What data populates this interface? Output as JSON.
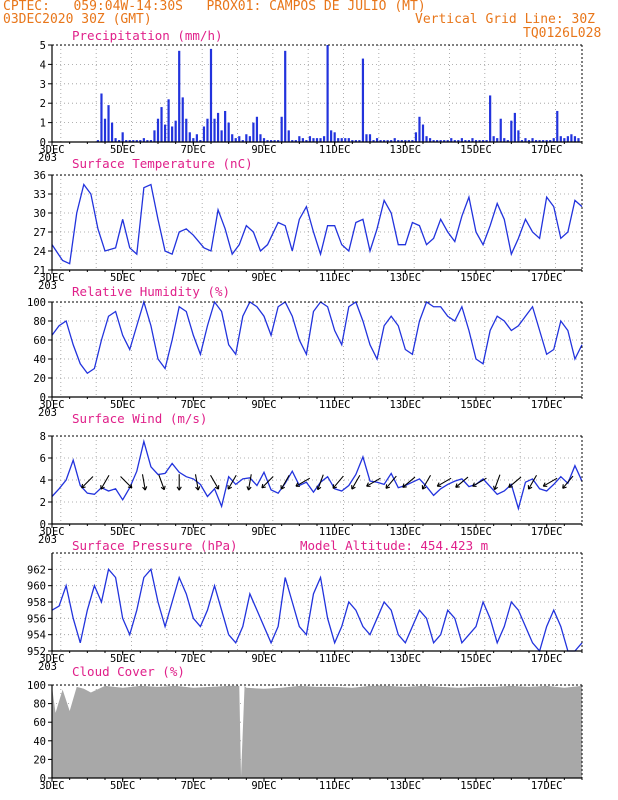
{
  "header": {
    "line1": "CPTEC:   059:04W-14:30S   PROX01: CAMPOS DE JULIO (MT)",
    "line2_left": "03DEC2020 30Z (GMT)",
    "line2_right": "Vertical Grid Line: 30Z",
    "line3_right": "TQ0126L028"
  },
  "colors": {
    "header": "#e8761a",
    "title": "#e0208a",
    "line": "#2233dd",
    "cloud": "#a8a8a8",
    "wind_arrow": "#000000"
  },
  "x_ticks": [
    "3DEC",
    "5DEC",
    "7DEC",
    "9DEC",
    "11DEC",
    "13DEC",
    "15DEC",
    "17DEC"
  ],
  "x_stub": "203",
  "vertical_grid_line": "30Z",
  "chart_data": [
    {
      "type": "bar",
      "title": "Precipitation (mm/h)",
      "ylim": [
        0,
        5
      ],
      "yticks": [
        0,
        1,
        2,
        3,
        4,
        5
      ],
      "x_range_days": [
        3,
        18
      ],
      "series": [
        {
          "x": [
            4.3,
            4.4,
            4.5,
            4.6,
            4.7,
            4.8,
            4.9,
            5.0,
            5.1,
            5.2,
            5.3,
            5.4,
            5.5,
            5.6,
            5.7,
            5.8,
            5.9,
            6.0,
            6.1,
            6.2,
            6.3,
            6.4,
            6.5,
            6.6,
            6.7,
            6.8,
            6.9,
            7.0,
            7.1,
            7.2,
            7.3,
            7.4,
            7.5,
            7.6,
            7.7,
            7.8,
            7.9,
            8.0,
            8.1,
            8.2,
            8.3,
            8.4,
            8.5,
            8.6,
            8.7,
            8.8,
            8.9,
            9.0,
            9.1,
            9.2,
            9.3,
            9.4,
            9.5,
            9.6,
            9.7,
            9.8,
            9.9,
            10.0,
            10.1,
            10.2,
            10.3,
            10.4,
            10.5,
            10.6,
            10.7,
            10.8,
            10.9,
            11.0,
            11.1,
            11.2,
            11.3,
            11.4,
            11.5,
            11.6,
            11.7,
            11.8,
            11.9,
            12.0,
            12.1,
            12.2,
            12.3,
            12.4,
            12.5,
            12.6,
            12.7,
            12.8,
            12.9,
            13.0,
            13.1,
            13.2,
            13.3,
            13.4,
            13.5,
            13.6,
            13.7,
            13.8,
            13.9,
            14.0,
            14.1,
            14.2,
            14.3,
            14.4,
            14.5,
            14.6,
            14.7,
            14.8,
            14.9,
            15.0,
            15.1,
            15.2,
            15.3,
            15.4,
            15.5,
            15.6,
            15.7,
            15.8,
            15.9,
            16.0,
            16.1,
            16.2,
            16.3,
            16.4,
            16.5,
            16.6,
            16.7,
            16.8,
            16.9,
            17.0,
            17.1,
            17.2,
            17.3,
            17.4,
            17.5,
            17.6,
            17.7,
            17.8,
            17.9
          ],
          "y": [
            0.1,
            2.5,
            1.2,
            1.9,
            1.0,
            0.2,
            0.1,
            0.5,
            0.1,
            0.1,
            0.1,
            0.1,
            0.1,
            0.2,
            0.1,
            0.1,
            0.6,
            1.2,
            1.8,
            0.9,
            2.2,
            0.8,
            1.1,
            4.7,
            2.3,
            1.2,
            0.5,
            0.2,
            0.4,
            0.1,
            0.8,
            1.2,
            4.8,
            1.2,
            1.5,
            0.6,
            1.6,
            1.0,
            0.4,
            0.2,
            0.3,
            0.1,
            0.4,
            0.3,
            1.0,
            1.3,
            0.4,
            0.2,
            0.1,
            0.1,
            0.1,
            0.1,
            1.3,
            4.7,
            0.6,
            0.1,
            0.1,
            0.3,
            0.2,
            0.1,
            0.3,
            0.2,
            0.2,
            0.2,
            0.3,
            5.0,
            0.6,
            0.5,
            0.2,
            0.2,
            0.2,
            0.2,
            0.1,
            0.1,
            0.1,
            4.3,
            0.4,
            0.4,
            0.1,
            0.2,
            0.1,
            0.1,
            0.1,
            0.1,
            0.2,
            0.1,
            0.1,
            0.1,
            0.1,
            0.1,
            0.5,
            1.3,
            0.9,
            0.3,
            0.2,
            0.1,
            0.1,
            0.1,
            0.1,
            0.1,
            0.2,
            0.1,
            0.1,
            0.2,
            0.1,
            0.1,
            0.2,
            0.1,
            0.1,
            0.1,
            0.1,
            2.4,
            0.3,
            0.2,
            1.2,
            0.2,
            0.1,
            1.1,
            1.5,
            0.6,
            0.1,
            0.2,
            0.1,
            0.2,
            0.1,
            0.1,
            0.1,
            0.1,
            0.1,
            0.2,
            1.6,
            0.3,
            0.2,
            0.3,
            0.4,
            0.3,
            0.2
          ]
        }
      ]
    },
    {
      "type": "line",
      "title": "Surface Temperature (nC)",
      "ylim": [
        21,
        36
      ],
      "yticks": [
        21,
        24,
        27,
        30,
        33,
        36
      ],
      "series": [
        {
          "x": [
            3.0,
            3.3,
            3.5,
            3.7,
            3.9,
            4.1,
            4.3,
            4.5,
            4.8,
            5.0,
            5.2,
            5.4,
            5.6,
            5.8,
            6.0,
            6.2,
            6.4,
            6.6,
            6.8,
            7.0,
            7.3,
            7.5,
            7.7,
            7.9,
            8.1,
            8.3,
            8.5,
            8.7,
            8.9,
            9.1,
            9.4,
            9.6,
            9.8,
            10.0,
            10.2,
            10.4,
            10.6,
            10.8,
            11.0,
            11.2,
            11.4,
            11.6,
            11.8,
            12.0,
            12.2,
            12.4,
            12.6,
            12.8,
            13.0,
            13.2,
            13.4,
            13.6,
            13.8,
            14.0,
            14.2,
            14.4,
            14.6,
            14.8,
            15.0,
            15.2,
            15.4,
            15.6,
            15.8,
            16.0,
            16.2,
            16.4,
            16.6,
            16.8,
            17.0,
            17.2,
            17.4,
            17.6,
            17.8,
            18.0
          ],
          "y": [
            25.0,
            22.5,
            22.0,
            30.0,
            34.5,
            33.0,
            27.5,
            24.0,
            24.5,
            29.0,
            24.5,
            23.5,
            34.0,
            34.5,
            29.0,
            24.0,
            23.5,
            27.0,
            27.5,
            26.5,
            24.5,
            24.0,
            30.5,
            27.5,
            23.5,
            25.0,
            28.0,
            27.0,
            24.0,
            25.0,
            28.5,
            28.0,
            24.0,
            29.0,
            31.0,
            27.0,
            23.5,
            28.0,
            28.0,
            25.0,
            24.0,
            28.5,
            29.0,
            24.0,
            27.5,
            32.0,
            30.0,
            25.0,
            25.0,
            28.5,
            28.0,
            25.0,
            26.0,
            29.0,
            27.0,
            25.5,
            29.5,
            32.5,
            27.0,
            25.0,
            28.0,
            31.5,
            29.0,
            23.5,
            26.0,
            29.0,
            27.0,
            26.0,
            32.5,
            31.0,
            26.0,
            27.0,
            32.0,
            31.0
          ]
        }
      ]
    },
    {
      "type": "line",
      "title": "Relative Humidity (%)",
      "ylim": [
        0,
        100
      ],
      "yticks": [
        0,
        20,
        40,
        60,
        80,
        100
      ],
      "series": [
        {
          "x": [
            3.0,
            3.2,
            3.4,
            3.6,
            3.8,
            4.0,
            4.2,
            4.4,
            4.6,
            4.8,
            5.0,
            5.2,
            5.4,
            5.6,
            5.8,
            6.0,
            6.2,
            6.4,
            6.6,
            6.8,
            7.0,
            7.2,
            7.4,
            7.6,
            7.8,
            8.0,
            8.2,
            8.4,
            8.6,
            8.8,
            9.0,
            9.2,
            9.4,
            9.6,
            9.8,
            10.0,
            10.2,
            10.4,
            10.6,
            10.8,
            11.0,
            11.2,
            11.4,
            11.6,
            11.8,
            12.0,
            12.2,
            12.4,
            12.6,
            12.8,
            13.0,
            13.2,
            13.4,
            13.6,
            13.8,
            14.0,
            14.2,
            14.4,
            14.6,
            14.8,
            15.0,
            15.2,
            15.4,
            15.6,
            15.8,
            16.0,
            16.2,
            16.4,
            16.6,
            16.8,
            17.0,
            17.2,
            17.4,
            17.6,
            17.8,
            18.0
          ],
          "y": [
            65,
            75,
            80,
            55,
            35,
            25,
            30,
            60,
            85,
            90,
            65,
            50,
            75,
            100,
            75,
            40,
            30,
            60,
            95,
            90,
            65,
            45,
            75,
            100,
            90,
            55,
            45,
            85,
            100,
            95,
            85,
            65,
            95,
            100,
            85,
            60,
            45,
            90,
            100,
            95,
            70,
            55,
            95,
            100,
            80,
            55,
            40,
            75,
            85,
            75,
            50,
            45,
            80,
            100,
            95,
            95,
            85,
            80,
            95,
            70,
            40,
            35,
            70,
            85,
            80,
            70,
            75,
            85,
            95,
            70,
            45,
            50,
            80,
            70,
            40,
            55
          ]
        }
      ]
    },
    {
      "type": "line",
      "title": "Surface Wind (m/s)",
      "ylim": [
        0,
        8
      ],
      "yticks": [
        0,
        2,
        4,
        6,
        8
      ],
      "series": [
        {
          "x": [
            3.0,
            3.2,
            3.4,
            3.6,
            3.8,
            4.0,
            4.2,
            4.4,
            4.6,
            4.8,
            5.0,
            5.2,
            5.4,
            5.6,
            5.8,
            6.0,
            6.2,
            6.4,
            6.6,
            6.8,
            7.0,
            7.2,
            7.4,
            7.6,
            7.8,
            8.0,
            8.2,
            8.4,
            8.6,
            8.8,
            9.0,
            9.2,
            9.4,
            9.6,
            9.8,
            10.0,
            10.2,
            10.4,
            10.6,
            10.8,
            11.0,
            11.2,
            11.4,
            11.6,
            11.8,
            12.0,
            12.2,
            12.4,
            12.6,
            12.8,
            13.0,
            13.2,
            13.4,
            13.6,
            13.8,
            14.0,
            14.2,
            14.4,
            14.6,
            14.8,
            15.0,
            15.2,
            15.4,
            15.6,
            15.8,
            16.0,
            16.2,
            16.4,
            16.6,
            16.8,
            17.0,
            17.2,
            17.4,
            17.6,
            17.8,
            18.0
          ],
          "y": [
            2.5,
            3.2,
            4.0,
            5.8,
            3.5,
            2.8,
            2.7,
            3.3,
            3.0,
            3.2,
            2.2,
            3.3,
            4.8,
            7.5,
            5.2,
            4.5,
            4.6,
            5.5,
            4.7,
            4.3,
            4.1,
            3.6,
            2.5,
            3.2,
            1.6,
            4.3,
            3.6,
            4.1,
            4.2,
            3.5,
            4.7,
            3.1,
            2.8,
            3.7,
            4.8,
            3.5,
            3.8,
            2.9,
            3.8,
            4.3,
            3.2,
            3.0,
            3.5,
            4.5,
            6.1,
            3.9,
            3.8,
            3.6,
            4.6,
            3.3,
            3.5,
            3.8,
            4.1,
            3.4,
            2.6,
            3.2,
            3.6,
            3.9,
            4.1,
            3.4,
            3.6,
            4.1,
            3.4,
            2.7,
            3.0,
            3.6,
            1.4,
            3.8,
            4.1,
            3.2,
            3.0,
            3.6,
            4.3,
            3.7,
            5.3,
            3.9
          ]
        }
      ],
      "arrow_days": [
        4.0,
        4.5,
        5.1,
        5.6,
        6.1,
        6.6,
        7.1,
        7.6,
        8.1,
        8.6,
        9.1,
        9.6,
        10.1,
        10.6,
        11.1,
        11.6,
        12.1,
        12.6,
        13.1,
        13.6,
        14.1,
        14.6,
        15.1,
        15.6,
        16.1,
        16.6,
        17.1,
        17.6
      ],
      "arrow_dirs_deg": [
        135,
        120,
        45,
        80,
        70,
        90,
        80,
        60,
        120,
        100,
        135,
        120,
        150,
        110,
        130,
        120,
        150,
        130,
        140,
        120,
        150,
        140,
        150,
        110,
        140,
        120,
        150,
        130
      ]
    },
    {
      "type": "line",
      "title": "Surface Pressure (hPa)",
      "annotation": "Model Altitude: 454.423 m",
      "ylim": [
        952,
        964
      ],
      "yticks": [
        952,
        954,
        956,
        958,
        960,
        962
      ],
      "series": [
        {
          "x": [
            3.0,
            3.2,
            3.4,
            3.6,
            3.8,
            4.0,
            4.2,
            4.4,
            4.6,
            4.8,
            5.0,
            5.2,
            5.4,
            5.6,
            5.8,
            6.0,
            6.2,
            6.4,
            6.6,
            6.8,
            7.0,
            7.2,
            7.4,
            7.6,
            7.8,
            8.0,
            8.2,
            8.4,
            8.6,
            8.8,
            9.0,
            9.2,
            9.4,
            9.6,
            9.8,
            10.0,
            10.2,
            10.4,
            10.6,
            10.8,
            11.0,
            11.2,
            11.4,
            11.6,
            11.8,
            12.0,
            12.2,
            12.4,
            12.6,
            12.8,
            13.0,
            13.2,
            13.4,
            13.6,
            13.8,
            14.0,
            14.2,
            14.4,
            14.6,
            14.8,
            15.0,
            15.2,
            15.4,
            15.6,
            15.8,
            16.0,
            16.2,
            16.4,
            16.6,
            16.8,
            17.0,
            17.2,
            17.4,
            17.6,
            17.8,
            18.0
          ],
          "y": [
            957,
            957.5,
            960,
            956,
            953,
            957,
            960,
            958,
            962,
            961,
            956,
            954,
            957,
            961,
            962,
            958,
            955,
            958,
            961,
            959,
            956,
            955,
            957,
            960,
            957,
            954,
            953,
            955,
            959,
            957,
            955,
            953,
            955,
            961,
            958,
            955,
            954,
            959,
            961,
            956,
            953,
            955,
            958,
            957,
            955,
            954,
            956,
            958,
            957,
            954,
            953,
            955,
            957,
            956,
            953,
            954,
            957,
            956,
            953,
            954,
            955,
            958,
            956,
            953,
            955,
            958,
            957,
            955,
            953,
            952,
            955,
            957,
            955,
            952,
            952,
            953
          ]
        }
      ]
    },
    {
      "type": "area",
      "title": "Cloud Cover (%)",
      "ylim": [
        0,
        100
      ],
      "yticks": [
        0,
        20,
        40,
        60,
        80,
        100
      ],
      "series": [
        {
          "x": [
            3.0,
            3.1,
            3.3,
            3.5,
            3.7,
            3.9,
            4.1,
            4.5,
            5.0,
            5.5,
            6.0,
            6.5,
            7.0,
            7.5,
            8.0,
            8.3,
            8.35,
            8.45,
            8.5,
            9.0,
            9.5,
            10.0,
            10.5,
            11.0,
            11.5,
            12.0,
            12.5,
            13.0,
            13.5,
            14.0,
            14.5,
            15.0,
            15.5,
            16.0,
            16.5,
            17.0,
            17.5,
            18.0
          ],
          "y": [
            98,
            70,
            95,
            72,
            98,
            96,
            92,
            99,
            97,
            99,
            98,
            99,
            97,
            98,
            99,
            99,
            2,
            99,
            97,
            96,
            97,
            99,
            98,
            98,
            97,
            99,
            99,
            98,
            99,
            98,
            97,
            98,
            98,
            99,
            98,
            99,
            97,
            99
          ]
        }
      ]
    }
  ]
}
